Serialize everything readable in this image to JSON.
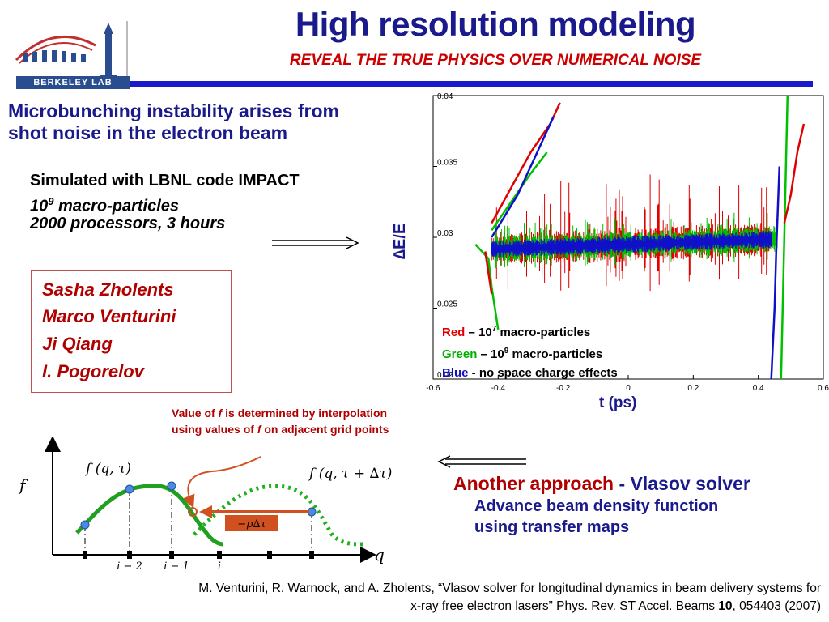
{
  "slide": {
    "title": "High resolution modeling",
    "subtitle": "REVEAL THE TRUE PHYSICS OVER NUMERICAL NOISE",
    "logo_text": "BERKELEY LAB"
  },
  "left": {
    "heading": "Microbunching instability arises from shot noise in the electron beam",
    "sim_line1": "Simulated with LBNL code IMPACT",
    "sim_line2_base": "10",
    "sim_line2_exp": "9",
    "sim_line2_rest": " macro-particles",
    "sim_line3": "2000 processors, 3 hours"
  },
  "people": [
    "Sasha Zholents",
    "Marco Venturini",
    "Ji Qiang",
    "I. Pogorelov"
  ],
  "chart": {
    "ylabel_symbol": "∆",
    "ylabel": "E/E",
    "xlabel": "t (ps)",
    "x_ticks": [
      "-0.6",
      "-0.4",
      "-0.2",
      "0",
      "0.2",
      "0.4",
      "0.6"
    ],
    "y_ticks": [
      "0.04",
      "0.035",
      "0.03",
      "0.025",
      "0.02"
    ],
    "legend": [
      {
        "name": "Red",
        "text": " – 10",
        "exp": "7",
        "rest": " macro-particles",
        "color": "#e00000"
      },
      {
        "name": "Green",
        "text": " – 10",
        "exp": "9",
        "rest": " macro-particles",
        "color": "#00b000"
      },
      {
        "name": "Blue",
        "text": " - no space charge effects",
        "exp": "",
        "rest": "",
        "color": "#1010c0"
      }
    ]
  },
  "vlasov": {
    "annotation_pre": "Value of ",
    "annotation_f1": "f",
    "annotation_mid": " is determined by interpolation using values of ",
    "annotation_f2": "f",
    "annotation_post": " on adjacent grid points",
    "label_f": "f",
    "label_q": "q",
    "label_fqt": "f (q, τ)",
    "label_fqdt": "f (q, τ + ∆τ)",
    "label_shift": "−p∆τ",
    "tick_i2": "i − 2",
    "tick_i1": "i − 1",
    "tick_i": "i"
  },
  "approach": {
    "highlight": "Another approach",
    "rest": " - Vlasov solver",
    "line1": "Advance beam density function",
    "line2": "using transfer maps",
    "highlight_color": "#b00000"
  },
  "citation": {
    "line1": "M. Venturini, R. Warnock, and A. Zholents, “Vlasov solver for longitudinal dynamics in beam delivery systems for",
    "line2_pre": "x-ray free electron lasers” Phys. Rev. ST Accel. Beams ",
    "line2_bold": "10",
    "line2_post": ", 054403 (2007)"
  }
}
